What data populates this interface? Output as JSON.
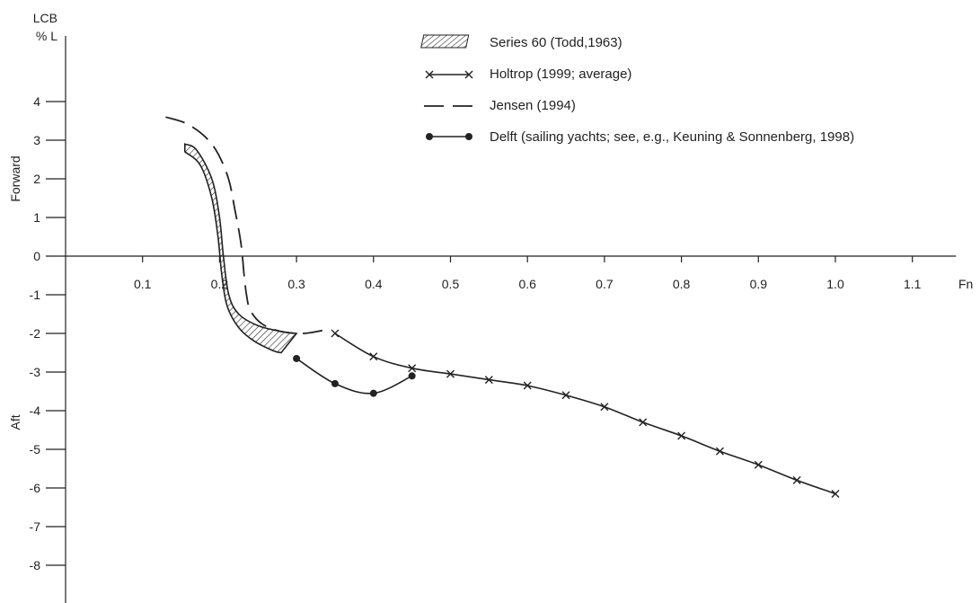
{
  "chart_data": {
    "type": "line",
    "title": "",
    "xlabel": "Fn",
    "ylabel": "LCB\n% L",
    "ylabel_lines": [
      "LCB",
      "% L"
    ],
    "side_labels": {
      "top": "Forward",
      "bottom": "Aft"
    },
    "xlim": [
      0.0,
      1.18
    ],
    "ylim": [
      -9.0,
      5.7
    ],
    "x_ticks": [
      0.1,
      0.2,
      0.3,
      0.4,
      0.5,
      0.6,
      0.7,
      0.8,
      0.9,
      1.0,
      1.1
    ],
    "x_tick_labels": [
      "0.1",
      "0.2",
      "0.3",
      "0.4",
      "0.5",
      "0.6",
      "0.7",
      "0.8",
      "0.9",
      "1.0",
      "1.1"
    ],
    "y_ticks": [
      4,
      3,
      2,
      1,
      0,
      -1,
      -2,
      -3,
      -4,
      -5,
      -6,
      -7,
      -8
    ],
    "y_tick_labels": [
      "4",
      "3",
      "2",
      "1",
      "0",
      "-1",
      "-2",
      "-3",
      "-4",
      "-5",
      "-6",
      "-7",
      "-8"
    ],
    "grid": false,
    "legend_position": "top-right",
    "series": [
      {
        "name": "Series 60 (Todd,1963)",
        "style": "hatched-band",
        "color": "#222222",
        "upper": [
          [
            0.155,
            2.9
          ],
          [
            0.17,
            2.75
          ],
          [
            0.19,
            2.0
          ],
          [
            0.2,
            1.0
          ],
          [
            0.205,
            0.0
          ],
          [
            0.212,
            -1.0
          ],
          [
            0.225,
            -1.5
          ],
          [
            0.25,
            -1.8
          ],
          [
            0.28,
            -1.95
          ],
          [
            0.3,
            -2.0
          ]
        ],
        "lower": [
          [
            0.155,
            2.7
          ],
          [
            0.175,
            2.35
          ],
          [
            0.19,
            1.5
          ],
          [
            0.198,
            0.5
          ],
          [
            0.203,
            -0.5
          ],
          [
            0.21,
            -1.3
          ],
          [
            0.225,
            -1.85
          ],
          [
            0.245,
            -2.2
          ],
          [
            0.27,
            -2.45
          ],
          [
            0.28,
            -2.5
          ]
        ]
      },
      {
        "name": "Holtrop (1999; average)",
        "style": "solid-x",
        "color": "#222222",
        "x": [
          0.35,
          0.4,
          0.45,
          0.5,
          0.55,
          0.6,
          0.65,
          0.7,
          0.75,
          0.8,
          0.85,
          0.9,
          0.95,
          1.0
        ],
        "y": [
          -2.0,
          -2.6,
          -2.9,
          -3.05,
          -3.2,
          -3.35,
          -3.6,
          -3.9,
          -4.3,
          -4.65,
          -5.05,
          -5.4,
          -5.8,
          -6.15
        ]
      },
      {
        "name": "Jensen (1994)",
        "style": "dashed",
        "color": "#222222",
        "x": [
          0.13,
          0.16,
          0.19,
          0.21,
          0.22,
          0.228,
          0.232,
          0.235,
          0.24,
          0.255,
          0.28,
          0.31,
          0.34
        ],
        "y": [
          3.6,
          3.4,
          2.9,
          2.1,
          1.2,
          0.3,
          -0.5,
          -1.0,
          -1.4,
          -1.75,
          -1.95,
          -2.0,
          -1.9
        ]
      },
      {
        "name": "Delft (sailing yachts; see, e.g., Keuning & Sonnenberg, 1998)",
        "style": "solid-dot",
        "color": "#222222",
        "x": [
          0.3,
          0.35,
          0.4,
          0.45
        ],
        "y": [
          -2.65,
          -3.3,
          -3.55,
          -3.1
        ]
      }
    ]
  }
}
